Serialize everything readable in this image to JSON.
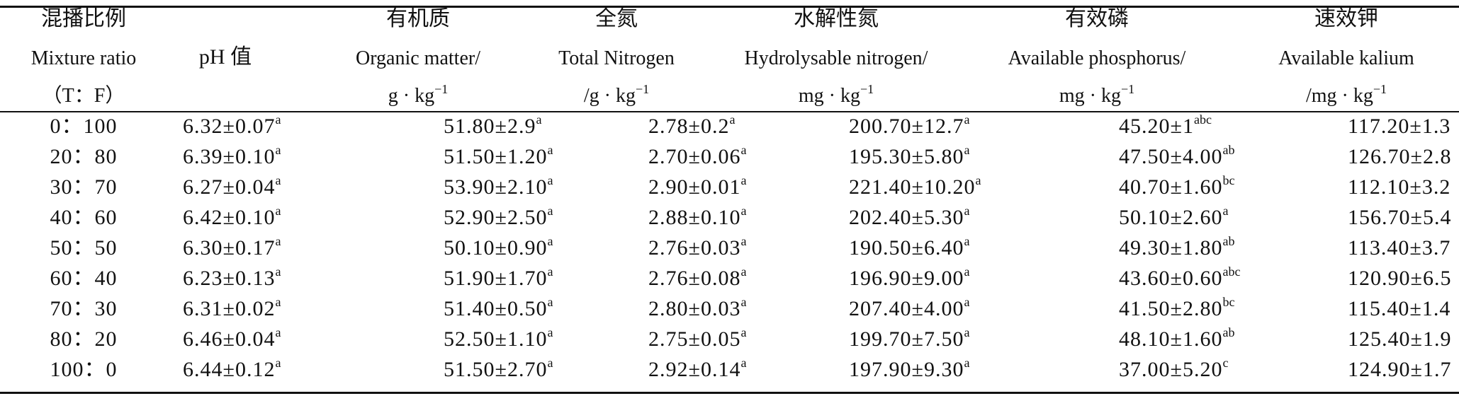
{
  "headers": [
    {
      "zh": "混播比例",
      "en": "Mixture ratio",
      "unit": "（T：F）",
      "unit_sup": ""
    },
    {
      "zh": "",
      "en": "pH 值",
      "unit": "",
      "unit_sup": ""
    },
    {
      "zh": "有机质",
      "en": "Organic matter/",
      "unit": "g · kg",
      "unit_sup": "−1"
    },
    {
      "zh": "全氮",
      "en": "Total Nitrogen",
      "unit": "/g · kg",
      "unit_sup": "−1"
    },
    {
      "zh": "水解性氮",
      "en": "Hydrolysable nitrogen/",
      "unit": "mg · kg",
      "unit_sup": "−1"
    },
    {
      "zh": "有效磷",
      "en": "Available phosphorus/",
      "unit": "mg · kg",
      "unit_sup": "−1"
    },
    {
      "zh": "速效钾",
      "en": "Available kalium",
      "unit": "/mg · kg",
      "unit_sup": "−1"
    }
  ],
  "rows": [
    {
      "ratio": "0：100",
      "ph": {
        "v": "6.32±0.07",
        "s": "a"
      },
      "om": {
        "v": "51.80±2.9",
        "s": "a"
      },
      "tn": {
        "v": "2.78±0.2",
        "s": "a"
      },
      "hn": {
        "v": "200.70±12.7",
        "s": "a"
      },
      "ap": {
        "v": "45.20±1",
        "s": "abc"
      },
      "ak": {
        "v": "117.20±1.3",
        "s": ""
      }
    },
    {
      "ratio": "20：80",
      "ph": {
        "v": "6.39±0.10",
        "s": "a"
      },
      "om": {
        "v": "51.50±1.20",
        "s": "a"
      },
      "tn": {
        "v": "2.70±0.06",
        "s": "a"
      },
      "hn": {
        "v": "195.30±5.80",
        "s": "a"
      },
      "ap": {
        "v": "47.50±4.00",
        "s": "ab"
      },
      "ak": {
        "v": "126.70±2.8",
        "s": ""
      }
    },
    {
      "ratio": "30：70",
      "ph": {
        "v": "6.27±0.04",
        "s": "a"
      },
      "om": {
        "v": "53.90±2.10",
        "s": "a"
      },
      "tn": {
        "v": "2.90±0.01",
        "s": "a"
      },
      "hn": {
        "v": "221.40±10.20",
        "s": "a"
      },
      "ap": {
        "v": "40.70±1.60",
        "s": "bc"
      },
      "ak": {
        "v": "112.10±3.2",
        "s": ""
      }
    },
    {
      "ratio": "40：60",
      "ph": {
        "v": "6.42±0.10",
        "s": "a"
      },
      "om": {
        "v": "52.90±2.50",
        "s": "a"
      },
      "tn": {
        "v": "2.88±0.10",
        "s": "a"
      },
      "hn": {
        "v": "202.40±5.30",
        "s": "a"
      },
      "ap": {
        "v": "50.10±2.60",
        "s": "a"
      },
      "ak": {
        "v": "156.70±5.4",
        "s": ""
      }
    },
    {
      "ratio": "50：50",
      "ph": {
        "v": "6.30±0.17",
        "s": "a"
      },
      "om": {
        "v": "50.10±0.90",
        "s": "a"
      },
      "tn": {
        "v": "2.76±0.03",
        "s": "a"
      },
      "hn": {
        "v": "190.50±6.40",
        "s": "a"
      },
      "ap": {
        "v": "49.30±1.80",
        "s": "ab"
      },
      "ak": {
        "v": "113.40±3.7",
        "s": ""
      }
    },
    {
      "ratio": "60：40",
      "ph": {
        "v": "6.23±0.13",
        "s": "a"
      },
      "om": {
        "v": "51.90±1.70",
        "s": "a"
      },
      "tn": {
        "v": "2.76±0.08",
        "s": "a"
      },
      "hn": {
        "v": "196.90±9.00",
        "s": "a"
      },
      "ap": {
        "v": "43.60±0.60",
        "s": "abc"
      },
      "ak": {
        "v": "120.90±6.5",
        "s": ""
      }
    },
    {
      "ratio": "70：30",
      "ph": {
        "v": "6.31±0.02",
        "s": "a"
      },
      "om": {
        "v": "51.40±0.50",
        "s": "a"
      },
      "tn": {
        "v": "2.80±0.03",
        "s": "a"
      },
      "hn": {
        "v": "207.40±4.00",
        "s": "a"
      },
      "ap": {
        "v": "41.50±2.80",
        "s": "bc"
      },
      "ak": {
        "v": "115.40±1.4",
        "s": ""
      }
    },
    {
      "ratio": "80：20",
      "ph": {
        "v": "6.46±0.04",
        "s": "a"
      },
      "om": {
        "v": "52.50±1.10",
        "s": "a"
      },
      "tn": {
        "v": "2.75±0.05",
        "s": "a"
      },
      "hn": {
        "v": "199.70±7.50",
        "s": "a"
      },
      "ap": {
        "v": "48.10±1.60",
        "s": "ab"
      },
      "ak": {
        "v": "125.40±1.9",
        "s": ""
      }
    },
    {
      "ratio": "100：0",
      "ph": {
        "v": "6.44±0.12",
        "s": "a"
      },
      "om": {
        "v": "51.50±2.70",
        "s": "a"
      },
      "tn": {
        "v": "2.92±0.14",
        "s": "a"
      },
      "hn": {
        "v": "197.90±9.30",
        "s": "a"
      },
      "ap": {
        "v": "37.00±5.20",
        "s": "c"
      },
      "ak": {
        "v": "124.90±1.7",
        "s": ""
      }
    }
  ]
}
